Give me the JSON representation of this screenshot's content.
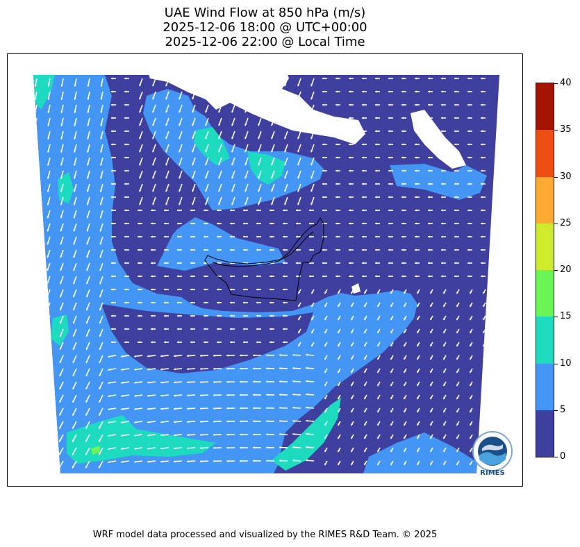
{
  "title": {
    "line1": "UAE Wind Flow at 850 hPa (m/s)",
    "line2": "2025-12-06 18:00 @ UTC+00:00",
    "line3": "2025-12-06 22:00 @ Local Time"
  },
  "colorbar": {
    "ticks": [
      "0",
      "5",
      "10",
      "15",
      "20",
      "25",
      "30",
      "35",
      "40"
    ],
    "colors": [
      "#3f3f9f",
      "#4396f4",
      "#1cdbbf",
      "#6af556",
      "#cfeb2c",
      "#fdaa33",
      "#ec4f11",
      "#a21300"
    ]
  },
  "map": {
    "background_color": "#3f3f9f",
    "vector_color": "#ffffff",
    "boundary_color": "#000000"
  },
  "logo": {
    "text": "RIMES"
  },
  "footer": {
    "credit": "WRF model data processed and visualized by the RIMES R&D Team. © 2025"
  }
}
